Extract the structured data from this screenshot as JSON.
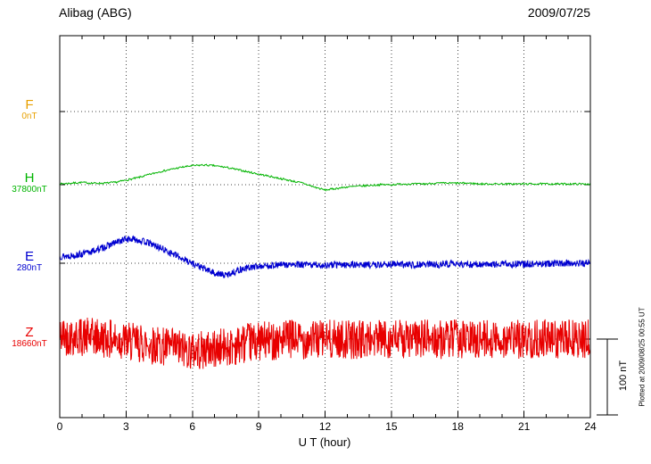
{
  "header": {
    "title": "Alibag (ABG)",
    "date": "2009/07/25"
  },
  "axis": {
    "xlabel": "U T (hour)"
  },
  "scale_bar": {
    "label": "100 nT"
  },
  "watermark": "Plotted at 2009/08/25 00:55 UT",
  "components": [
    {
      "label": "F",
      "baseline": "0nT",
      "color": "#e8a000"
    },
    {
      "label": "H",
      "baseline": "37800nT",
      "color": "#00b400"
    },
    {
      "label": "E",
      "baseline": "280nT",
      "color": "#0000d0"
    },
    {
      "label": "Z",
      "baseline": "18660nT",
      "color": "#e80000"
    }
  ],
  "chart_data": {
    "type": "line",
    "title": "Alibag (ABG)",
    "date": "2009/07/25",
    "xlabel": "U T (hour)",
    "x_range": [
      0,
      24
    ],
    "x_ticks": [
      0,
      3,
      6,
      9,
      12,
      15,
      18,
      21,
      24
    ],
    "grid": "dotted vertical lines every 3 h; dotted horizontal line at each component baseline",
    "legend_position": "left-margin component labels",
    "scale_bar_nT": 100,
    "sample_interval_hours": 0.5,
    "series": [
      {
        "name": "F",
        "baseline_value": "0nT",
        "color": "#e8a000",
        "visible": false,
        "noise_nT": 0,
        "seed": 1,
        "samples_per_hour": 2,
        "values_nT": [
          0,
          0,
          0,
          0,
          0,
          0,
          0,
          0,
          0,
          0,
          0,
          0,
          0,
          0,
          0,
          0,
          0,
          0,
          0,
          0,
          0,
          0,
          0,
          0,
          0,
          0,
          0,
          0,
          0,
          0,
          0,
          0,
          0,
          0,
          0,
          0,
          0,
          0,
          0,
          0,
          0,
          0,
          0,
          0,
          0,
          0,
          0,
          0,
          0
        ]
      },
      {
        "name": "H",
        "baseline_value": "37800nT",
        "color": "#00b400",
        "visible": true,
        "noise_nT": 1.2,
        "seed": 7,
        "samples_per_hour": 30,
        "values_nT": [
          1,
          2,
          3,
          2,
          2,
          3,
          6,
          9,
          13,
          17,
          20,
          23,
          25,
          26,
          25,
          23,
          20,
          17,
          14,
          11,
          8,
          5,
          2,
          -3,
          -7,
          -5,
          -3,
          -2,
          -1,
          0,
          0,
          1,
          1,
          1,
          2,
          2,
          2,
          2,
          1,
          1,
          1,
          1,
          1,
          1,
          1,
          1,
          1,
          1,
          1
        ]
      },
      {
        "name": "E",
        "baseline_value": "280nT",
        "color": "#0000d0",
        "visible": true,
        "noise_nT": 4.5,
        "seed": 13,
        "samples_per_hour": 60,
        "values_nT": [
          9,
          10,
          12,
          16,
          21,
          27,
          32,
          31,
          27,
          21,
          14,
          7,
          0,
          -7,
          -13,
          -16,
          -10,
          -6,
          -4,
          -3,
          -2,
          -2,
          -2,
          -2,
          -3,
          -2,
          -2,
          -2,
          -2,
          -2,
          -1,
          -2,
          -2,
          -1,
          -2,
          -1,
          -1,
          -2,
          -1,
          -1,
          -1,
          -1,
          -1,
          -1,
          -1,
          0,
          0,
          0,
          0
        ]
      },
      {
        "name": "Z",
        "baseline_value": "18660nT",
        "color": "#e80000",
        "visible": true,
        "noise_nT": 26,
        "seed": 42,
        "samples_per_hour": 60,
        "values_nT": [
          4,
          4,
          3,
          2,
          1,
          -1,
          -3,
          -5,
          -7,
          -9,
          -11,
          -13,
          -15,
          -15,
          -13,
          -11,
          -8,
          -5,
          -3,
          -2,
          -1,
          0,
          -1,
          0,
          0,
          -1,
          0,
          -1,
          0,
          0,
          -1,
          0,
          -1,
          0,
          0,
          -1,
          0,
          -1,
          0,
          0,
          -1,
          0,
          -1,
          0,
          0,
          -1,
          0,
          -1,
          0
        ]
      }
    ]
  }
}
